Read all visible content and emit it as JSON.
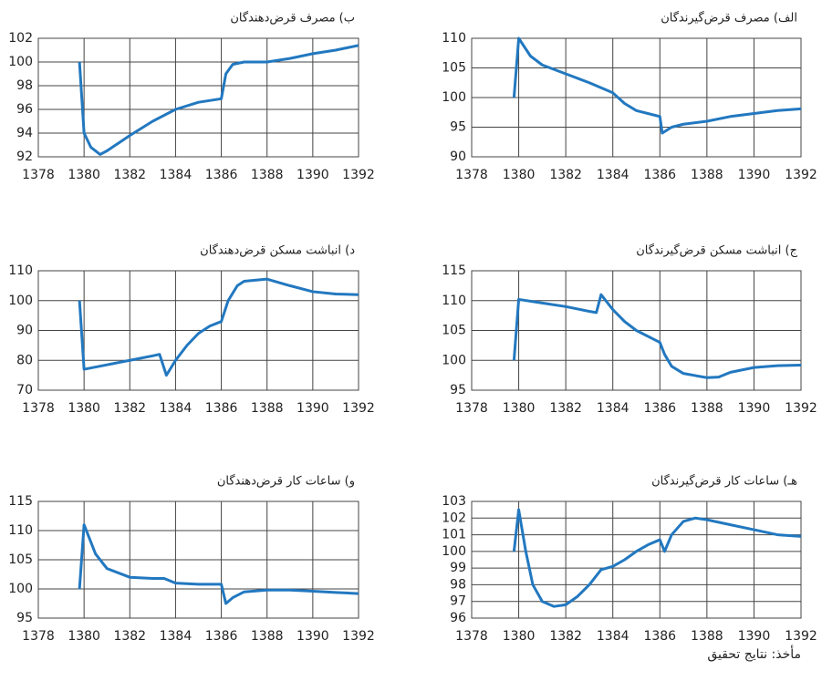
{
  "chart_data": [
    {
      "type": "line",
      "title": "الف) مصرف قرض‌گیرندگان",
      "color": "#2278c0",
      "grid": true,
      "xlim": [
        1378,
        1392
      ],
      "xticks": [
        1378,
        1380,
        1382,
        1384,
        1386,
        1388,
        1390,
        1392
      ],
      "ylim": [
        90,
        110
      ],
      "yticks": [
        90,
        95,
        100,
        105,
        110
      ],
      "x": [
        1379.8,
        1380.0,
        1380.5,
        1381,
        1382,
        1383,
        1384,
        1384.5,
        1385,
        1385.8,
        1386,
        1386.1,
        1386.5,
        1387,
        1388,
        1389,
        1390,
        1391,
        1392
      ],
      "values": [
        100,
        110,
        107,
        105.5,
        104,
        102.5,
        100.8,
        99,
        97.8,
        97,
        96.8,
        94,
        95,
        95.5,
        96,
        96.8,
        97.3,
        97.8,
        98.1
      ]
    },
    {
      "type": "line",
      "title": "ب) مصرف قرض‌دهندگان",
      "color": "#2278c0",
      "grid": true,
      "xlim": [
        1378,
        1392
      ],
      "xticks": [
        1378,
        1380,
        1382,
        1384,
        1386,
        1388,
        1390,
        1392
      ],
      "ylim": [
        92,
        102
      ],
      "yticks": [
        92,
        94,
        96,
        98,
        100,
        102
      ],
      "x": [
        1379.8,
        1380.0,
        1380.3,
        1380.7,
        1381,
        1382,
        1383,
        1384,
        1385,
        1386,
        1386.2,
        1386.5,
        1387,
        1388,
        1389,
        1390,
        1391,
        1392
      ],
      "values": [
        100,
        94,
        92.8,
        92.2,
        92.5,
        93.8,
        95,
        96,
        96.6,
        96.9,
        99,
        99.8,
        100,
        100,
        100.3,
        100.7,
        101,
        101.4
      ]
    },
    {
      "type": "line",
      "title": "ج) انباشت مسکن قرض‌گیرندگان",
      "color": "#2278c0",
      "grid": true,
      "xlim": [
        1378,
        1392
      ],
      "xticks": [
        1378,
        1380,
        1382,
        1384,
        1386,
        1388,
        1390,
        1392
      ],
      "ylim": [
        95,
        115
      ],
      "yticks": [
        95,
        100,
        105,
        110,
        115
      ],
      "x": [
        1379.8,
        1380,
        1381,
        1382,
        1383,
        1383.3,
        1383.5,
        1384,
        1384.5,
        1385,
        1386,
        1386.2,
        1386.5,
        1387,
        1388,
        1388.5,
        1389,
        1390,
        1391,
        1392
      ],
      "values": [
        100,
        110.2,
        109.6,
        109,
        108.2,
        108,
        111,
        108.5,
        106.5,
        105,
        103,
        101,
        99,
        97.8,
        97.1,
        97.2,
        98,
        98.8,
        99.1,
        99.2
      ]
    },
    {
      "type": "line",
      "title": "د) انباشت مسکن قرض‌دهندگان",
      "color": "#2278c0",
      "grid": true,
      "xlim": [
        1378,
        1392
      ],
      "xticks": [
        1378,
        1380,
        1382,
        1384,
        1386,
        1388,
        1390,
        1392
      ],
      "ylim": [
        70,
        110
      ],
      "yticks": [
        70,
        80,
        90,
        100,
        110
      ],
      "x": [
        1379.8,
        1380,
        1381,
        1382,
        1383,
        1383.3,
        1383.6,
        1384,
        1384.5,
        1385,
        1385.5,
        1386,
        1386.3,
        1386.7,
        1387,
        1388,
        1389,
        1390,
        1391,
        1392
      ],
      "values": [
        100,
        77,
        78.5,
        80,
        81.5,
        82,
        75,
        80,
        85,
        89,
        91.5,
        93,
        100,
        105,
        106.5,
        107.2,
        105,
        103,
        102.2,
        102
      ]
    },
    {
      "type": "line",
      "title": "هـ) ساعات کار قرض‌گیرندگان",
      "color": "#2278c0",
      "grid": true,
      "xlim": [
        1378,
        1392
      ],
      "xticks": [
        1378,
        1380,
        1382,
        1384,
        1386,
        1388,
        1390,
        1392
      ],
      "ylim": [
        96,
        103
      ],
      "yticks": [
        96,
        97,
        98,
        99,
        100,
        101,
        102,
        103
      ],
      "x": [
        1379.8,
        1380,
        1380.3,
        1380.6,
        1381,
        1381.5,
        1382,
        1382.5,
        1383,
        1383.5,
        1384,
        1384.5,
        1385,
        1385.5,
        1386,
        1386.2,
        1386.5,
        1387,
        1387.5,
        1388,
        1389,
        1390,
        1391,
        1392
      ],
      "values": [
        100,
        102.5,
        100,
        98,
        97,
        96.7,
        96.8,
        97.3,
        98,
        98.9,
        99.1,
        99.5,
        100,
        100.4,
        100.7,
        100,
        101,
        101.8,
        102,
        101.9,
        101.6,
        101.3,
        101,
        100.9
      ]
    },
    {
      "type": "line",
      "title": "و) ساعات کار قرض‌دهندگان",
      "color": "#2278c0",
      "grid": true,
      "xlim": [
        1378,
        1392
      ],
      "xticks": [
        1378,
        1380,
        1382,
        1384,
        1386,
        1388,
        1390,
        1392
      ],
      "ylim": [
        95,
        115
      ],
      "yticks": [
        95,
        100,
        105,
        110,
        115
      ],
      "x": [
        1379.8,
        1380,
        1380.5,
        1381,
        1382,
        1383,
        1383.5,
        1384,
        1385,
        1386,
        1386.2,
        1386.5,
        1387,
        1388,
        1389,
        1390,
        1391,
        1392
      ],
      "values": [
        100,
        111,
        106,
        103.5,
        102,
        101.8,
        101.8,
        101,
        100.8,
        100.8,
        97.5,
        98.5,
        99.5,
        99.8,
        99.8,
        99.6,
        99.4,
        99.2
      ]
    }
  ],
  "source": "مأخذ: نتایج تحقیق"
}
